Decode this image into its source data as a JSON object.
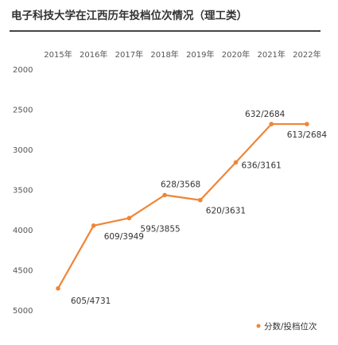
{
  "title": "电子科技大学在江西历年投档位次情况（理工类）",
  "colors": {
    "line": "#ee8638",
    "axis_text": "#555555",
    "rule": "#444444"
  },
  "chart_data": {
    "type": "line",
    "title": "电子科技大学在江西历年投档位次情况（理工类）",
    "categories": [
      "2015年",
      "2016年",
      "2017年",
      "2018年",
      "2019年",
      "2020年",
      "2021年",
      "2022年"
    ],
    "yticks": [
      "2000",
      "2500",
      "3000",
      "3500",
      "4000",
      "4500",
      "5000"
    ],
    "ylim": [
      2000,
      5000
    ],
    "y_inverted": true,
    "grid": false,
    "legend_position": "bottom-right",
    "series": [
      {
        "name": "分数/投档位次",
        "values": [
          4731,
          3949,
          3855,
          3568,
          3631,
          3161,
          2684,
          2684
        ],
        "labels": [
          "605/4731",
          "609/3949",
          "595/3855",
          "628/3568",
          "620/3631",
          "636/3161",
          "632/2684",
          "613/2684"
        ]
      }
    ]
  }
}
